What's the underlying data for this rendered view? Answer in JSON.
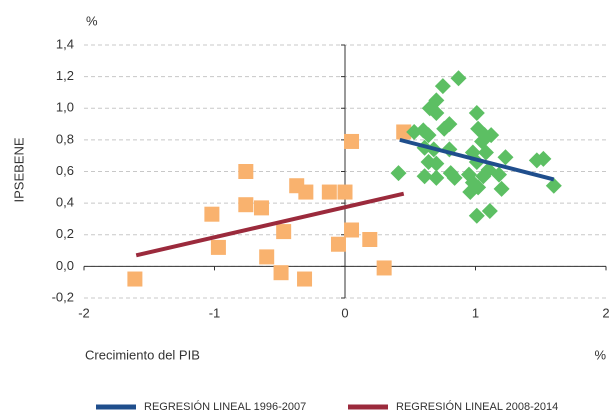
{
  "chart_data": {
    "type": "scatter",
    "y_unit": "%",
    "x_unit": "%",
    "ylabel": "IPSEBENE",
    "xlabel": "Crecimiento del PIB",
    "xlim": [
      -2,
      2
    ],
    "xticks": [
      -2,
      -1,
      0,
      1,
      2
    ],
    "ylim": [
      -0.2,
      1.4
    ],
    "yticks": [
      {
        "value": -0.2,
        "label": "-0,2"
      },
      {
        "value": 0,
        "label": "0,0"
      },
      {
        "value": 0.2,
        "label": "0,2"
      },
      {
        "value": 0.4,
        "label": "0,4"
      },
      {
        "value": 0.6,
        "label": "0,6"
      },
      {
        "value": 0.8,
        "label": "0,8"
      },
      {
        "value": 1.0,
        "label": "1,0"
      },
      {
        "value": 1.2,
        "label": "1,2"
      },
      {
        "value": 1.4,
        "label": "1,4"
      }
    ],
    "grid": true,
    "series": [
      {
        "color": "#f9b26e",
        "marker": "square",
        "x": [
          -1.61,
          -1.02,
          -0.97,
          -0.76,
          -0.76,
          -0.64,
          -0.6,
          -0.49,
          -0.47,
          -0.37,
          -0.3,
          -0.31,
          -0.12,
          0.0,
          0.05,
          -0.05,
          0.05,
          0.19,
          0.3,
          0.45
        ],
        "values": [
          -0.08,
          0.33,
          0.12,
          0.6,
          0.39,
          0.37,
          0.06,
          -0.04,
          0.22,
          0.51,
          0.47,
          -0.08,
          0.47,
          0.47,
          0.79,
          0.14,
          0.23,
          0.17,
          -0.01,
          0.85
        ]
      },
      {
        "color": "#5cbf63",
        "marker": "diamond",
        "x": [
          0.41,
          0.87,
          0.75,
          0.7,
          0.65,
          0.7,
          1.01,
          0.53,
          0.6,
          0.64,
          0.76,
          0.8,
          1.02,
          1.07,
          1.12,
          1.05,
          0.61,
          0.68,
          0.8,
          0.98,
          1.08,
          1.23,
          1.47,
          1.52,
          0.64,
          0.7,
          1.01,
          1.1,
          0.61,
          0.7,
          0.81,
          0.84,
          0.95,
          1.06,
          1.18,
          0.98,
          0.96,
          1.2,
          1.6,
          1.11,
          1.01,
          1.02
        ],
        "values": [
          0.59,
          1.19,
          1.14,
          1.05,
          1.0,
          0.97,
          0.97,
          0.85,
          0.86,
          0.83,
          0.87,
          0.9,
          0.87,
          0.83,
          0.83,
          0.79,
          0.75,
          0.74,
          0.74,
          0.72,
          0.72,
          0.69,
          0.67,
          0.68,
          0.66,
          0.65,
          0.66,
          0.61,
          0.57,
          0.56,
          0.59,
          0.56,
          0.58,
          0.57,
          0.58,
          0.53,
          0.47,
          0.49,
          0.51,
          0.35,
          0.32,
          0.5
        ]
      },
      {
        "name": "REGRESIÓN LINEAL 1996-2007",
        "color": "#1f4e8c",
        "marker": "line",
        "x": [
          0.42,
          1.6
        ],
        "values": [
          0.8,
          0.55
        ]
      },
      {
        "name": "REGRESIÓN LINEAL 2008-2014",
        "color": "#9b2a3c",
        "marker": "line",
        "x": [
          -1.6,
          0.45
        ],
        "values": [
          0.07,
          0.46
        ]
      }
    ]
  }
}
